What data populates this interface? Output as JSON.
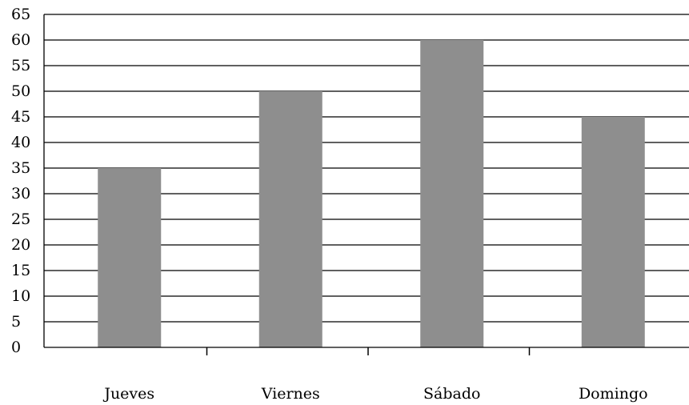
{
  "chart_data": {
    "type": "bar",
    "categories": [
      "Jueves",
      "Viernes",
      "Sábado",
      "Domingo"
    ],
    "values": [
      35,
      50,
      60,
      45
    ],
    "ylim": [
      0,
      65
    ],
    "yticks": [
      0,
      5,
      10,
      15,
      20,
      25,
      30,
      35,
      40,
      45,
      50,
      55,
      60,
      65
    ],
    "title": "",
    "xlabel": "",
    "ylabel": "",
    "grid": true,
    "legend": "none",
    "bar_color": "#8e8e8e"
  }
}
